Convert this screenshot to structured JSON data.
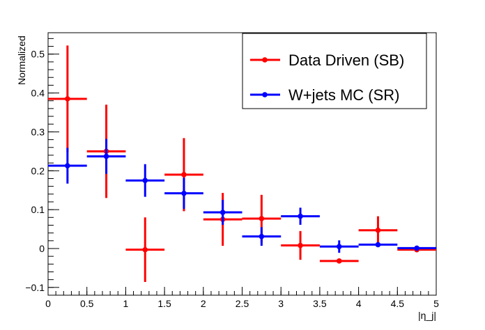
{
  "chart_data": {
    "type": "scatter",
    "xlabel": "|η_j|",
    "ylabel": "Normalized",
    "xlim": [
      0,
      5
    ],
    "ylim": [
      -0.12,
      0.555
    ],
    "x_ticks": [
      0,
      0.5,
      1,
      1.5,
      2,
      2.5,
      3,
      3.5,
      4,
      4.5,
      5
    ],
    "x_tick_labels": [
      "0",
      "0.5",
      "1",
      "1.5",
      "2",
      "2.5",
      "3",
      "3.5",
      "4",
      "4.5",
      "5"
    ],
    "y_ticks": [
      -0.1,
      0,
      0.1,
      0.2,
      0.3,
      0.4,
      0.5
    ],
    "y_tick_labels": [
      "−0.1",
      "0",
      "0.1",
      "0.2",
      "0.3",
      "0.4",
      "0.5"
    ],
    "bin_half_width": 0.25,
    "legend_position": "top-right",
    "series": [
      {
        "name": "Data Driven (SB)",
        "color": "#ff0000",
        "x": [
          0.25,
          0.75,
          1.25,
          1.75,
          2.25,
          2.75,
          3.25,
          3.75,
          4.25,
          4.75
        ],
        "y": [
          0.385,
          0.25,
          -0.003,
          0.19,
          0.075,
          0.077,
          0.008,
          -0.032,
          0.047,
          -0.003
        ],
        "yerr": [
          0.137,
          0.12,
          0.083,
          0.094,
          0.068,
          0.061,
          0.037,
          0.0,
          0.036,
          0.0
        ]
      },
      {
        "name": "W+jets MC (SR)",
        "color": "#0000ff",
        "x": [
          0.25,
          0.75,
          1.25,
          1.75,
          2.25,
          2.75,
          3.25,
          3.75,
          4.25,
          4.75
        ],
        "y": [
          0.213,
          0.237,
          0.175,
          0.142,
          0.093,
          0.031,
          0.083,
          0.005,
          0.01,
          0.001
        ],
        "yerr": [
          0.046,
          0.045,
          0.042,
          0.04,
          0.032,
          0.024,
          0.022,
          0.016,
          0.0,
          0.0
        ]
      }
    ]
  }
}
